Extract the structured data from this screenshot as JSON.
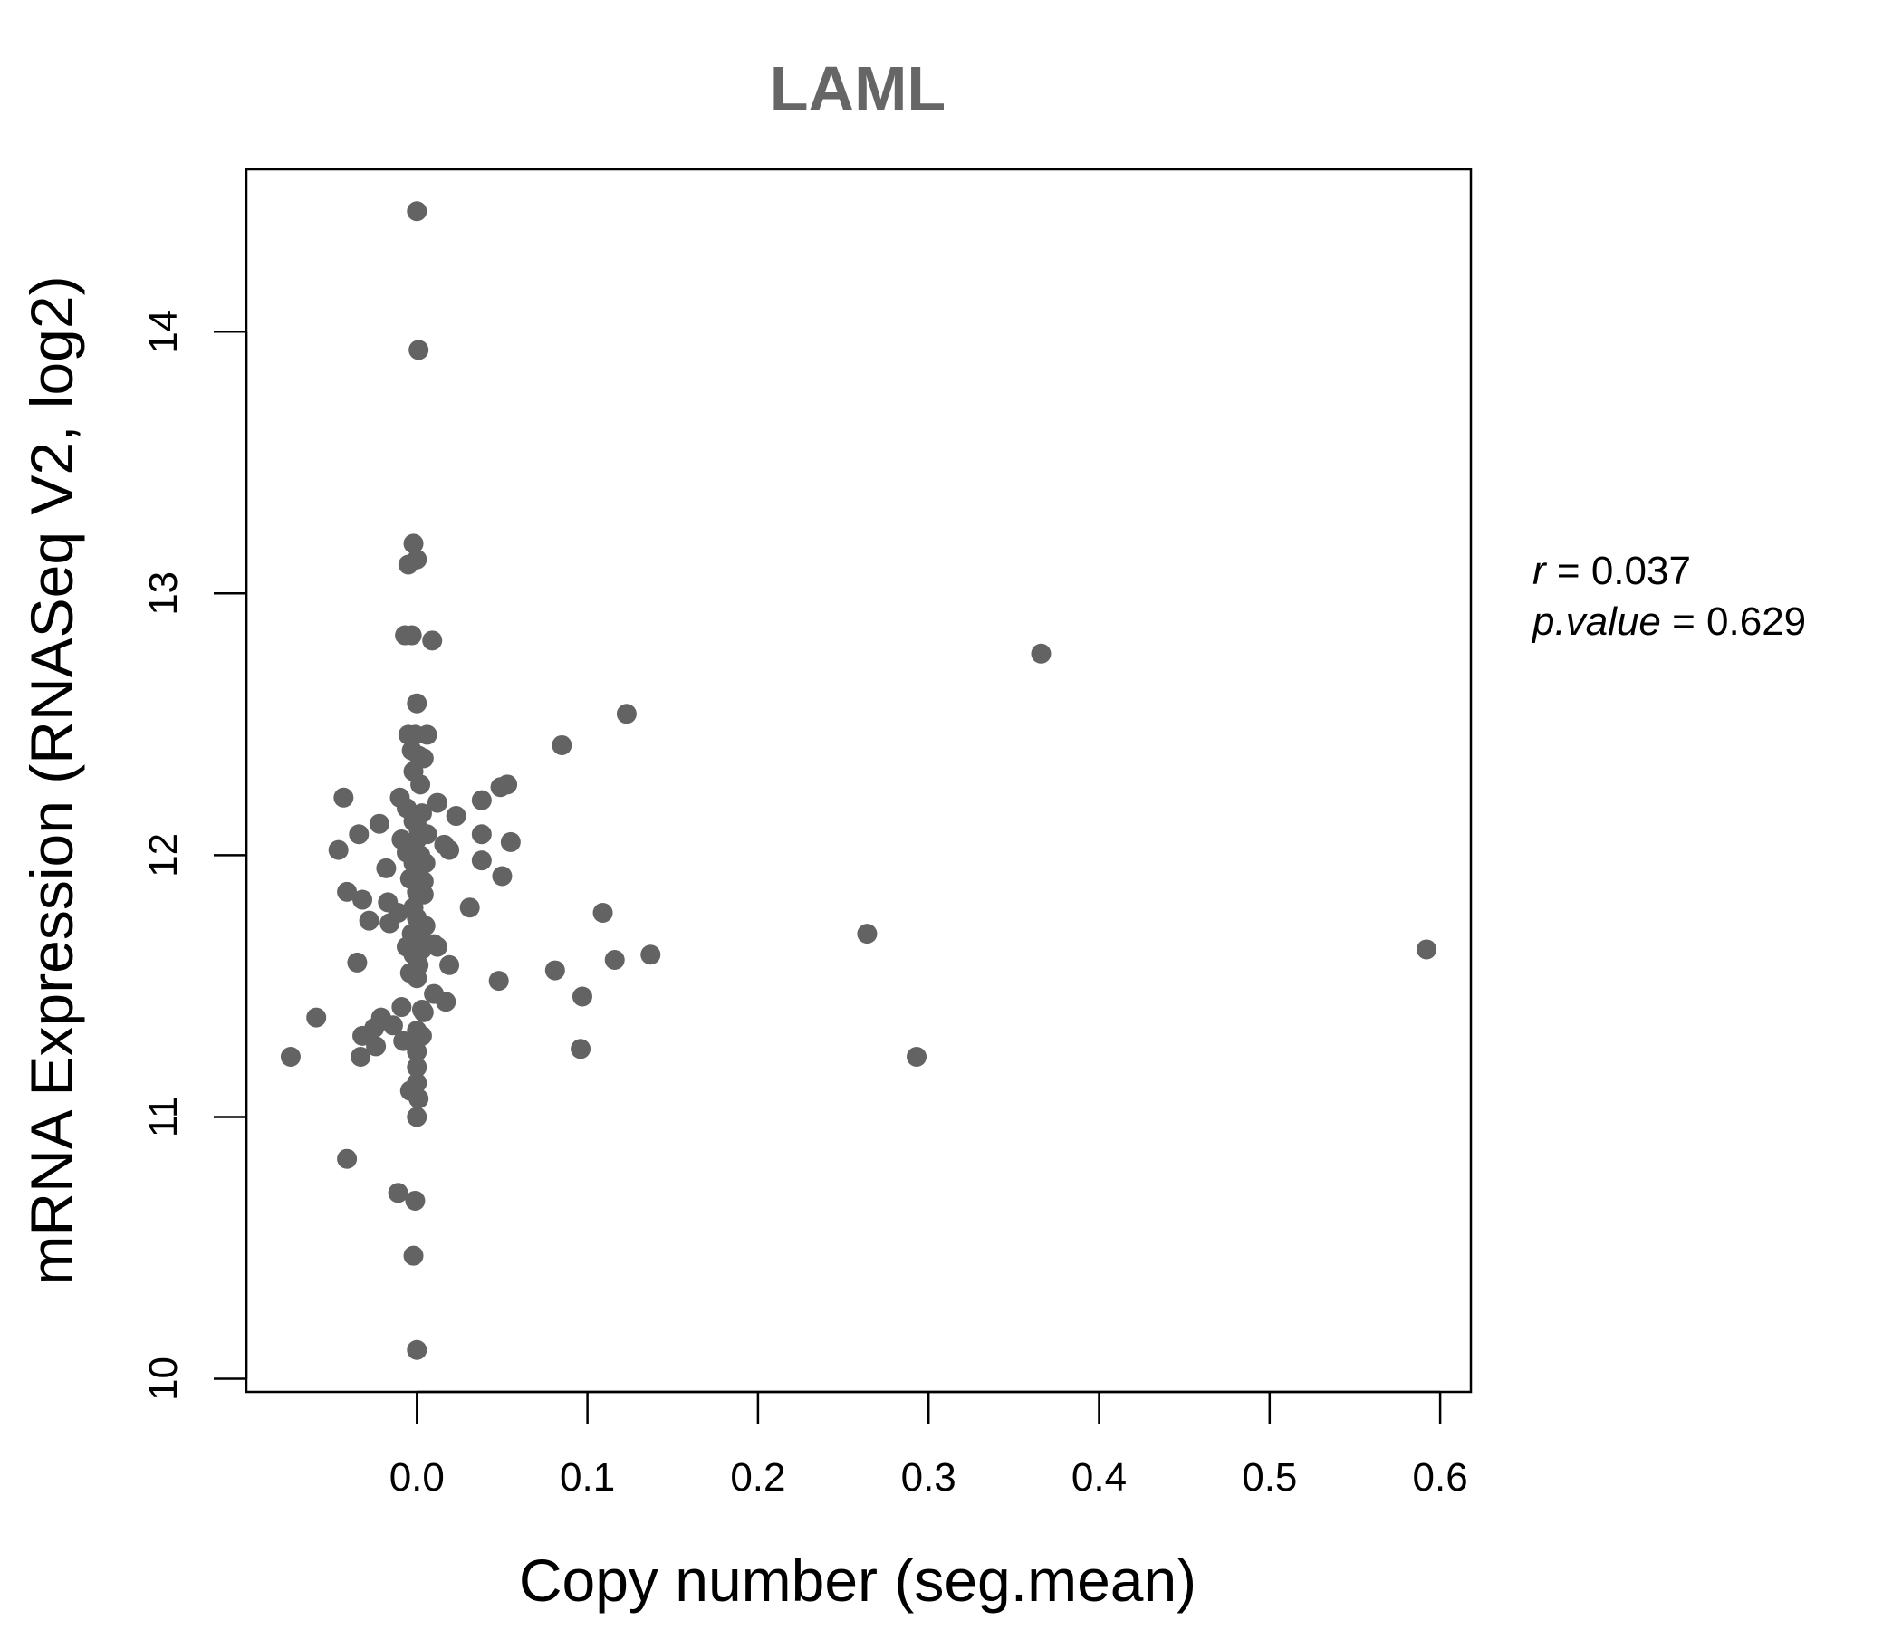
{
  "chart_data": {
    "type": "scatter",
    "title": "LAML",
    "xlabel": "Copy number (seg.mean)",
    "ylabel": "mRNA Expression (RNASeq V2, log2)",
    "xlim": [
      -0.1,
      0.618
    ],
    "ylim": [
      9.95,
      14.62
    ],
    "x_ticks": [
      "0.0",
      "0.1",
      "0.2",
      "0.3",
      "0.4",
      "0.5",
      "0.6"
    ],
    "y_ticks": [
      "10",
      "11",
      "12",
      "13",
      "14"
    ],
    "grid": false,
    "point_color": "#636363",
    "stats": {
      "r_label": "r",
      "r_value": "0.037",
      "p_label": "p.value",
      "p_value": "0.629"
    },
    "points": [
      [
        0.0,
        14.46
      ],
      [
        0.001,
        13.93
      ],
      [
        -0.002,
        13.19
      ],
      [
        -0.005,
        13.11
      ],
      [
        0.0,
        13.13
      ],
      [
        -0.007,
        12.84
      ],
      [
        -0.003,
        12.84
      ],
      [
        0.009,
        12.82
      ],
      [
        0.366,
        12.77
      ],
      [
        0.0,
        12.58
      ],
      [
        0.123,
        12.54
      ],
      [
        -0.005,
        12.46
      ],
      [
        -0.001,
        12.46
      ],
      [
        0.006,
        12.46
      ],
      [
        0.085,
        12.42
      ],
      [
        -0.003,
        12.4
      ],
      [
        0.001,
        12.38
      ],
      [
        0.004,
        12.37
      ],
      [
        -0.002,
        12.32
      ],
      [
        0.002,
        12.27
      ],
      [
        0.049,
        12.26
      ],
      [
        0.053,
        12.27
      ],
      [
        -0.043,
        12.22
      ],
      [
        -0.01,
        12.22
      ],
      [
        0.012,
        12.2
      ],
      [
        0.038,
        12.21
      ],
      [
        -0.006,
        12.18
      ],
      [
        0.003,
        12.16
      ],
      [
        0.023,
        12.15
      ],
      [
        -0.002,
        12.13
      ],
      [
        -0.022,
        12.12
      ],
      [
        0.001,
        12.1
      ],
      [
        0.006,
        12.08
      ],
      [
        -0.034,
        12.08
      ],
      [
        0.038,
        12.08
      ],
      [
        -0.009,
        12.06
      ],
      [
        0.0,
        12.06
      ],
      [
        0.055,
        12.05
      ],
      [
        0.016,
        12.04
      ],
      [
        0.019,
        12.02
      ],
      [
        -0.046,
        12.02
      ],
      [
        -0.006,
        12.01
      ],
      [
        0.002,
        12.0
      ],
      [
        -0.002,
        11.97
      ],
      [
        0.005,
        11.97
      ],
      [
        0.038,
        11.98
      ],
      [
        -0.018,
        11.95
      ],
      [
        0.0,
        11.94
      ],
      [
        0.05,
        11.92
      ],
      [
        -0.004,
        11.91
      ],
      [
        0.004,
        11.9
      ],
      [
        -0.041,
        11.86
      ],
      [
        0.0,
        11.86
      ],
      [
        -0.032,
        11.83
      ],
      [
        0.004,
        11.85
      ],
      [
        -0.017,
        11.82
      ],
      [
        -0.002,
        11.8
      ],
      [
        0.031,
        11.8
      ],
      [
        0.109,
        11.78
      ],
      [
        -0.011,
        11.78
      ],
      [
        -0.028,
        11.75
      ],
      [
        0.0,
        11.76
      ],
      [
        -0.016,
        11.74
      ],
      [
        0.005,
        11.73
      ],
      [
        0.264,
        11.7
      ],
      [
        -0.003,
        11.7
      ],
      [
        0.002,
        11.69
      ],
      [
        -0.001,
        11.67
      ],
      [
        0.01,
        11.66
      ],
      [
        0.012,
        11.65
      ],
      [
        -0.006,
        11.65
      ],
      [
        0.003,
        11.64
      ],
      [
        0.137,
        11.62
      ],
      [
        0.592,
        11.64
      ],
      [
        -0.002,
        11.62
      ],
      [
        -0.035,
        11.59
      ],
      [
        0.116,
        11.6
      ],
      [
        0.001,
        11.58
      ],
      [
        0.019,
        11.58
      ],
      [
        0.081,
        11.56
      ],
      [
        -0.004,
        11.55
      ],
      [
        0.0,
        11.53
      ],
      [
        0.048,
        11.52
      ],
      [
        0.01,
        11.47
      ],
      [
        0.097,
        11.46
      ],
      [
        0.017,
        11.44
      ],
      [
        -0.009,
        11.42
      ],
      [
        0.003,
        11.41
      ],
      [
        0.004,
        11.4
      ],
      [
        -0.021,
        11.38
      ],
      [
        -0.059,
        11.38
      ],
      [
        -0.014,
        11.35
      ],
      [
        0.0,
        11.33
      ],
      [
        -0.025,
        11.34
      ],
      [
        -0.032,
        11.31
      ],
      [
        0.003,
        11.31
      ],
      [
        -0.008,
        11.29
      ],
      [
        -0.001,
        11.28
      ],
      [
        0.096,
        11.26
      ],
      [
        -0.024,
        11.27
      ],
      [
        0.0,
        11.25
      ],
      [
        -0.074,
        11.23
      ],
      [
        -0.033,
        11.23
      ],
      [
        0.293,
        11.23
      ],
      [
        0.0,
        11.19
      ],
      [
        0.0,
        11.13
      ],
      [
        -0.004,
        11.1
      ],
      [
        0.001,
        11.07
      ],
      [
        0.0,
        11.0
      ],
      [
        -0.041,
        10.84
      ],
      [
        -0.011,
        10.71
      ],
      [
        -0.001,
        10.68
      ],
      [
        -0.002,
        10.47
      ],
      [
        0.0,
        10.11
      ]
    ]
  }
}
